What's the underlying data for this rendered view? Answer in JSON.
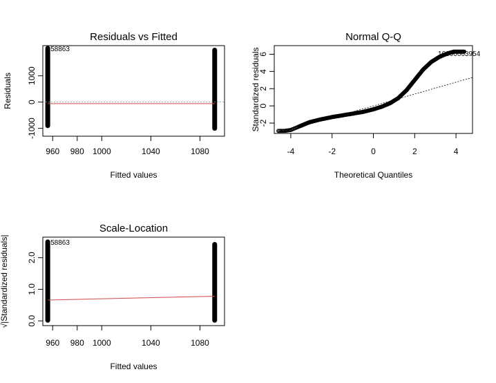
{
  "chart_data": [
    {
      "type": "scatter",
      "title": "Residuals vs Fitted",
      "xlabel": "Fitted values",
      "ylabel": "Residuals",
      "xlim": [
        952,
        1100
      ],
      "ylim": [
        -1300,
        2150
      ],
      "xticks": [
        960,
        980,
        1000,
        1040,
        1080
      ],
      "xtick_labels": [
        "960",
        "980",
        "1000",
        "1040",
        "1080"
      ],
      "yticks": [
        -1000,
        0,
        1000
      ],
      "ytick_labels": [
        "-1000",
        "0",
        "1000"
      ],
      "point_label": "58863",
      "clusters": [
        {
          "x": 956,
          "y_min": -900,
          "y_max": 2050
        },
        {
          "x": 1092,
          "y_min": -1000,
          "y_max": 1980
        }
      ],
      "reference_line": {
        "y": 0,
        "style": "dotted"
      },
      "smooth_line": {
        "x": [
          956,
          1092
        ],
        "y": [
          -60,
          -60
        ],
        "color": "#d04a4a"
      },
      "grid": false
    },
    {
      "type": "scatter",
      "title": "Normal Q-Q",
      "xlabel": "Theoretical Quantiles",
      "ylabel": "Standardized residuals",
      "xlim": [
        -4.8,
        4.8
      ],
      "ylim": [
        -3.2,
        7.0
      ],
      "xticks": [
        -4,
        -2,
        0,
        2,
        4
      ],
      "xtick_labels": [
        "-4",
        "-2",
        "0",
        "2",
        "4"
      ],
      "yticks": [
        -2,
        0,
        2,
        4,
        6
      ],
      "ytick_labels": [
        "-2",
        "0",
        "2",
        "4",
        "6"
      ],
      "point_label": "16660663954",
      "curve": {
        "x": [
          -4.6,
          -4.3,
          -4.0,
          -3.7,
          -3.4,
          -3.1,
          -2.6,
          -2.0,
          -1.5,
          -1.0,
          -0.5,
          0.0,
          0.4,
          0.8,
          1.2,
          1.6,
          2.0,
          2.4,
          2.8,
          3.2,
          3.6,
          3.9,
          4.2,
          4.4
        ],
        "y": [
          -2.9,
          -2.9,
          -2.8,
          -2.5,
          -2.2,
          -1.9,
          -1.6,
          -1.3,
          -1.1,
          -0.9,
          -0.7,
          -0.4,
          -0.1,
          0.3,
          0.9,
          1.8,
          3.0,
          4.2,
          5.1,
          5.7,
          6.1,
          6.3,
          6.3,
          6.3
        ]
      },
      "reference_line": {
        "x": [
          -4.8,
          4.8
        ],
        "y": [
          -3.3,
          3.3
        ],
        "style": "dotted"
      },
      "grid": false
    },
    {
      "type": "scatter",
      "title": "Scale-Location",
      "xlabel": "Fitted values",
      "ylabel": "√|Standardized residuals|",
      "xlim": [
        952,
        1100
      ],
      "ylim": [
        -0.15,
        2.65
      ],
      "xticks": [
        960,
        980,
        1000,
        1040,
        1080
      ],
      "xtick_labels": [
        "960",
        "980",
        "1000",
        "1040",
        "1080"
      ],
      "yticks": [
        0.0,
        1.0,
        2.0
      ],
      "ytick_labels": [
        "0.0",
        "1.0",
        "2.0"
      ],
      "point_label": "58863",
      "clusters": [
        {
          "x": 956,
          "y_min": 0.02,
          "y_max": 2.5
        },
        {
          "x": 1092,
          "y_min": 0.02,
          "y_max": 2.42
        }
      ],
      "smooth_line": {
        "x": [
          956,
          1092
        ],
        "y": [
          0.66,
          0.78
        ],
        "color": "#d04a4a"
      },
      "grid": false
    }
  ]
}
